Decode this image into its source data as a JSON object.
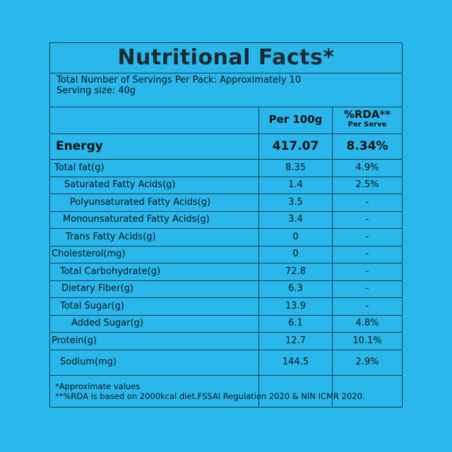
{
  "title": "Nutritional Facts*",
  "servings": {
    "per_pack": "Total Number of Servings Per Pack: Approximately 10",
    "size": "Serving size: 40g"
  },
  "headers": {
    "per100": "Per 100g",
    "rda": "%RDA**",
    "rda_sub": "Per Serve"
  },
  "rows": [
    {
      "label": "Energy",
      "per100": "417.07",
      "rda": "8.34%"
    },
    {
      "label": "Total fat(g)",
      "per100": "8.35",
      "rda": "4.9%"
    },
    {
      "label": "Saturated Fatty Acids(g)",
      "per100": "1.4",
      "rda": "2.5%"
    },
    {
      "label": "Polyunsaturated Fatty Acids(g)",
      "per100": "3.5",
      "rda": "-"
    },
    {
      "label": "Monounsaturated Fatty Acids(g)",
      "per100": "3.4",
      "rda": "-"
    },
    {
      "label": "Trans Fatty Acids(g)",
      "per100": "0",
      "rda": "-"
    },
    {
      "label": "Cholesterol(mg)",
      "per100": "0",
      "rda": "-"
    },
    {
      "label": "Total Carbohydrate(g)",
      "per100": "72.8",
      "rda": "-"
    },
    {
      "label": "Dietary Fiber(g)",
      "per100": "6.3",
      "rda": "-"
    },
    {
      "label": "Total Sugar(g)",
      "per100": "13.9",
      "rda": "-"
    },
    {
      "label": "Added Sugar(g)",
      "per100": "6.1",
      "rda": "4.8%"
    },
    {
      "label": "Protein(g)",
      "per100": "12.7",
      "rda": "10.1%"
    },
    {
      "label": "Sodium(mg)",
      "per100": "144.5",
      "rda": "2.9%"
    }
  ],
  "footnotes": {
    "line1": "*Approximate values",
    "line2": "**%RDA is based on 2000kcal diet.FSSAI Regulation 2020 & NIN ICMR 2020."
  },
  "colors": {
    "background": "#2ab8ec",
    "border": "#1a3a4a"
  }
}
